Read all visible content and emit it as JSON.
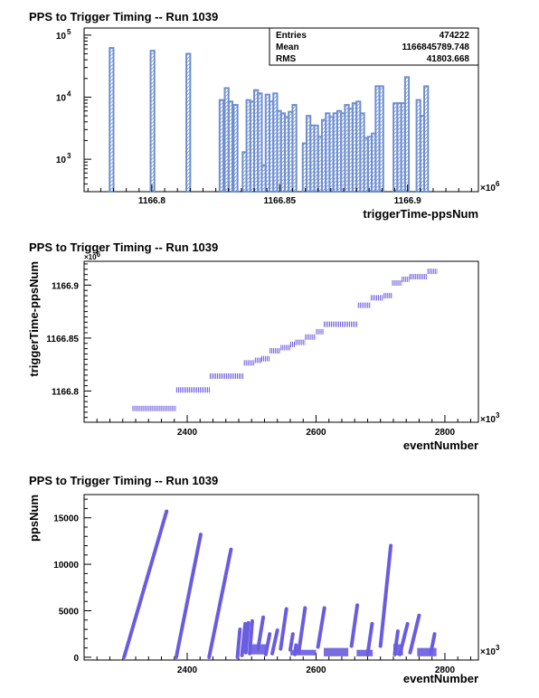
{
  "chart_data": [
    {
      "type": "bar",
      "title": "PPS to Trigger Timing -- Run 1039",
      "xlabel": "triggerTime-ppsNum",
      "ylabel": "",
      "x_multiplier": "×10",
      "x_multiplier_exp": "6",
      "x_ticks": [
        "1166.8",
        "1166.85",
        "1166.9"
      ],
      "x_tick_values": [
        1166.8,
        1166.85,
        1166.9
      ],
      "y_ticks": [
        "10",
        "10",
        "10"
      ],
      "y_tick_exps": [
        "3",
        "4",
        "5"
      ],
      "y_tick_values": [
        1000,
        10000,
        100000
      ],
      "xlim": [
        1166.7735,
        1166.9277
      ],
      "ylim": [
        300,
        130000
      ],
      "log_y": true,
      "stats": {
        "entries_label": "Entries",
        "entries_value": "474222",
        "mean_label": "Mean",
        "mean_value": "1166845789.748",
        "rms_label": "RMS",
        "rms_value": "41803.668"
      },
      "color": "#6f8fcf",
      "bins": [
        {
          "x0": 1166.7835,
          "x1": 1166.785,
          "value": 62000
        },
        {
          "x0": 1166.7995,
          "x1": 1166.801,
          "value": 56000
        },
        {
          "x0": 1166.8135,
          "x1": 1166.815,
          "value": 50000
        },
        {
          "x0": 1166.8265,
          "x1": 1166.828,
          "value": 9000
        },
        {
          "x0": 1166.8285,
          "x1": 1166.83,
          "value": 14000
        },
        {
          "x0": 1166.83,
          "x1": 1166.8315,
          "value": 8500
        },
        {
          "x0": 1166.832,
          "x1": 1166.8335,
          "value": 7500
        },
        {
          "x0": 1166.8355,
          "x1": 1166.837,
          "value": 1300
        },
        {
          "x0": 1166.837,
          "x1": 1166.8385,
          "value": 9000
        },
        {
          "x0": 1166.8385,
          "x1": 1166.84,
          "value": 8500
        },
        {
          "x0": 1166.84,
          "x1": 1166.8415,
          "value": 13000
        },
        {
          "x0": 1166.8415,
          "x1": 1166.843,
          "value": 11500
        },
        {
          "x0": 1166.843,
          "x1": 1166.8445,
          "value": 800
        },
        {
          "x0": 1166.8445,
          "x1": 1166.846,
          "value": 11000
        },
        {
          "x0": 1166.846,
          "x1": 1166.8475,
          "value": 8500
        },
        {
          "x0": 1166.8475,
          "x1": 1166.849,
          "value": 11500
        },
        {
          "x0": 1166.849,
          "x1": 1166.8505,
          "value": 6000
        },
        {
          "x0": 1166.8505,
          "x1": 1166.852,
          "value": 5500
        },
        {
          "x0": 1166.852,
          "x1": 1166.8535,
          "value": 4800
        },
        {
          "x0": 1166.8535,
          "x1": 1166.855,
          "value": 5800
        },
        {
          "x0": 1166.855,
          "x1": 1166.8565,
          "value": 7500
        },
        {
          "x0": 1166.859,
          "x1": 1166.8605,
          "value": 1800
        },
        {
          "x0": 1166.8605,
          "x1": 1166.862,
          "value": 5000
        },
        {
          "x0": 1166.862,
          "x1": 1166.8635,
          "value": 3500
        },
        {
          "x0": 1166.8635,
          "x1": 1166.865,
          "value": 3500
        },
        {
          "x0": 1166.865,
          "x1": 1166.8665,
          "value": 2300
        },
        {
          "x0": 1166.8665,
          "x1": 1166.868,
          "value": 4300
        },
        {
          "x0": 1166.868,
          "x1": 1166.8695,
          "value": 5500
        },
        {
          "x0": 1166.8695,
          "x1": 1166.871,
          "value": 4800
        },
        {
          "x0": 1166.871,
          "x1": 1166.8725,
          "value": 5500
        },
        {
          "x0": 1166.8725,
          "x1": 1166.874,
          "value": 6000
        },
        {
          "x0": 1166.874,
          "x1": 1166.8755,
          "value": 5500
        },
        {
          "x0": 1166.8755,
          "x1": 1166.877,
          "value": 7500
        },
        {
          "x0": 1166.877,
          "x1": 1166.8785,
          "value": 6500
        },
        {
          "x0": 1166.8785,
          "x1": 1166.88,
          "value": 8000
        },
        {
          "x0": 1166.88,
          "x1": 1166.8815,
          "value": 8500
        },
        {
          "x0": 1166.8815,
          "x1": 1166.883,
          "value": 5500
        },
        {
          "x0": 1166.883,
          "x1": 1166.8845,
          "value": 2200
        },
        {
          "x0": 1166.8845,
          "x1": 1166.886,
          "value": 2300
        },
        {
          "x0": 1166.886,
          "x1": 1166.8875,
          "value": 2600
        },
        {
          "x0": 1166.8875,
          "x1": 1166.889,
          "value": 15000
        },
        {
          "x0": 1166.889,
          "x1": 1166.8905,
          "value": 15000
        },
        {
          "x0": 1166.8945,
          "x1": 1166.896,
          "value": 8000
        },
        {
          "x0": 1166.896,
          "x1": 1166.8975,
          "value": 8000
        },
        {
          "x0": 1166.8975,
          "x1": 1166.899,
          "value": 8000
        },
        {
          "x0": 1166.899,
          "x1": 1166.9005,
          "value": 21000
        },
        {
          "x0": 1166.9035,
          "x1": 1166.905,
          "value": 9000
        },
        {
          "x0": 1166.905,
          "x1": 1166.9065,
          "value": 5000
        },
        {
          "x0": 1166.9065,
          "x1": 1166.908,
          "value": 15000
        }
      ]
    },
    {
      "type": "scatter",
      "title": "PPS to Trigger Timing -- Run 1039",
      "xlabel": "eventNumber",
      "ylabel": "triggerTime-ppsNum",
      "x_multiplier": "×10",
      "x_multiplier_exp": "3",
      "y_multiplier": "×10",
      "y_multiplier_exp": "6",
      "x_ticks": [
        "2400",
        "2600",
        "2800"
      ],
      "x_tick_values": [
        2400,
        2600,
        2800
      ],
      "y_ticks": [
        "1166.8",
        "1166.85",
        "1166.9"
      ],
      "y_tick_values": [
        1166.8,
        1166.85,
        1166.9
      ],
      "xlim": [
        2240,
        2852
      ],
      "ylim": [
        1166.7705,
        1166.9225
      ],
      "color": "#6a5ce0",
      "segments": [
        {
          "x0": 2315,
          "x1": 2383,
          "y": 1166.7835
        },
        {
          "x0": 2383,
          "x1": 2435,
          "y": 1166.801
        },
        {
          "x0": 2435,
          "x1": 2488,
          "y": 1166.814
        },
        {
          "x0": 2488,
          "x1": 2505,
          "y": 1166.8265
        },
        {
          "x0": 2505,
          "x1": 2515,
          "y": 1166.829
        },
        {
          "x0": 2515,
          "x1": 2528,
          "y": 1166.8305
        },
        {
          "x0": 2528,
          "x1": 2545,
          "y": 1166.838
        },
        {
          "x0": 2545,
          "x1": 2560,
          "y": 1166.841
        },
        {
          "x0": 2560,
          "x1": 2568,
          "y": 1166.844
        },
        {
          "x0": 2568,
          "x1": 2583,
          "y": 1166.846
        },
        {
          "x0": 2583,
          "x1": 2600,
          "y": 1166.851
        },
        {
          "x0": 2600,
          "x1": 2612,
          "y": 1166.856
        },
        {
          "x0": 2612,
          "x1": 2665,
          "y": 1166.863
        },
        {
          "x0": 2665,
          "x1": 2685,
          "y": 1166.881
        },
        {
          "x0": 2685,
          "x1": 2705,
          "y": 1166.888
        },
        {
          "x0": 2705,
          "x1": 2718,
          "y": 1166.89
        },
        {
          "x0": 2718,
          "x1": 2733,
          "y": 1166.902
        },
        {
          "x0": 2733,
          "x1": 2745,
          "y": 1166.9055
        },
        {
          "x0": 2745,
          "x1": 2773,
          "y": 1166.908
        },
        {
          "x0": 2773,
          "x1": 2788,
          "y": 1166.913
        }
      ]
    },
    {
      "type": "scatter",
      "title": "PPS to Trigger Timing -- Run 1039",
      "xlabel": "eventNumber",
      "ylabel": "ppsNum",
      "x_multiplier": "×10",
      "x_multiplier_exp": "3",
      "x_ticks": [
        "2400",
        "2600",
        "2800"
      ],
      "x_tick_values": [
        2400,
        2600,
        2800
      ],
      "y_ticks": [
        "0",
        "5000",
        "10000",
        "15000"
      ],
      "y_tick_values": [
        0,
        5000,
        10000,
        15000
      ],
      "xlim": [
        2240,
        2852
      ],
      "ylim": [
        -300,
        17500
      ],
      "color": "#6a5ce0",
      "ramps": [
        {
          "x0": 2302,
          "y0": 0,
          "x1": 2368,
          "y1": 15700
        },
        {
          "x0": 2383,
          "y0": 0,
          "x1": 2421,
          "y1": 13200
        },
        {
          "x0": 2434,
          "y0": 0,
          "x1": 2468,
          "y1": 11600
        },
        {
          "x0": 2478,
          "y0": 0,
          "x1": 2482,
          "y1": 3000
        },
        {
          "x0": 2485,
          "y0": 200,
          "x1": 2490,
          "y1": 3600
        },
        {
          "x0": 2491,
          "y0": 500,
          "x1": 2495,
          "y1": 3700
        },
        {
          "x0": 2497,
          "y0": 400,
          "x1": 2501,
          "y1": 3900
        },
        {
          "x0": 2510,
          "y0": 900,
          "x1": 2518,
          "y1": 4300
        },
        {
          "x0": 2522,
          "y0": 300,
          "x1": 2528,
          "y1": 2500
        },
        {
          "x0": 2532,
          "y0": 400,
          "x1": 2540,
          "y1": 2900
        },
        {
          "x0": 2545,
          "y0": 900,
          "x1": 2554,
          "y1": 5200
        },
        {
          "x0": 2560,
          "y0": 800,
          "x1": 2564,
          "y1": 2500
        },
        {
          "x0": 2567,
          "y0": 300,
          "x1": 2569,
          "y1": 1300
        },
        {
          "x0": 2573,
          "y0": 500,
          "x1": 2583,
          "y1": 5300
        },
        {
          "x0": 2603,
          "y0": 1100,
          "x1": 2613,
          "y1": 5300
        },
        {
          "x0": 2655,
          "y0": 1200,
          "x1": 2664,
          "y1": 5600
        },
        {
          "x0": 2680,
          "y0": 300,
          "x1": 2687,
          "y1": 3600
        },
        {
          "x0": 2700,
          "y0": 1200,
          "x1": 2716,
          "y1": 12000
        },
        {
          "x0": 2722,
          "y0": 300,
          "x1": 2727,
          "y1": 2800
        },
        {
          "x0": 2730,
          "y0": 300,
          "x1": 2742,
          "y1": 3600
        },
        {
          "x0": 2746,
          "y0": 500,
          "x1": 2760,
          "y1": 4500
        },
        {
          "x0": 2778,
          "y0": 400,
          "x1": 2784,
          "y1": 2500
        }
      ],
      "noise_bands": [
        {
          "x0": 2498,
          "x1": 2522,
          "y0": 300,
          "y1": 1400
        },
        {
          "x0": 2560,
          "x1": 2600,
          "y0": 200,
          "y1": 800
        },
        {
          "x0": 2612,
          "x1": 2650,
          "y0": 100,
          "y1": 1000
        },
        {
          "x0": 2663,
          "x1": 2688,
          "y0": 100,
          "y1": 800
        },
        {
          "x0": 2720,
          "x1": 2735,
          "y0": 200,
          "y1": 1400
        },
        {
          "x0": 2757,
          "x1": 2787,
          "y0": 100,
          "y1": 1000
        }
      ]
    }
  ]
}
